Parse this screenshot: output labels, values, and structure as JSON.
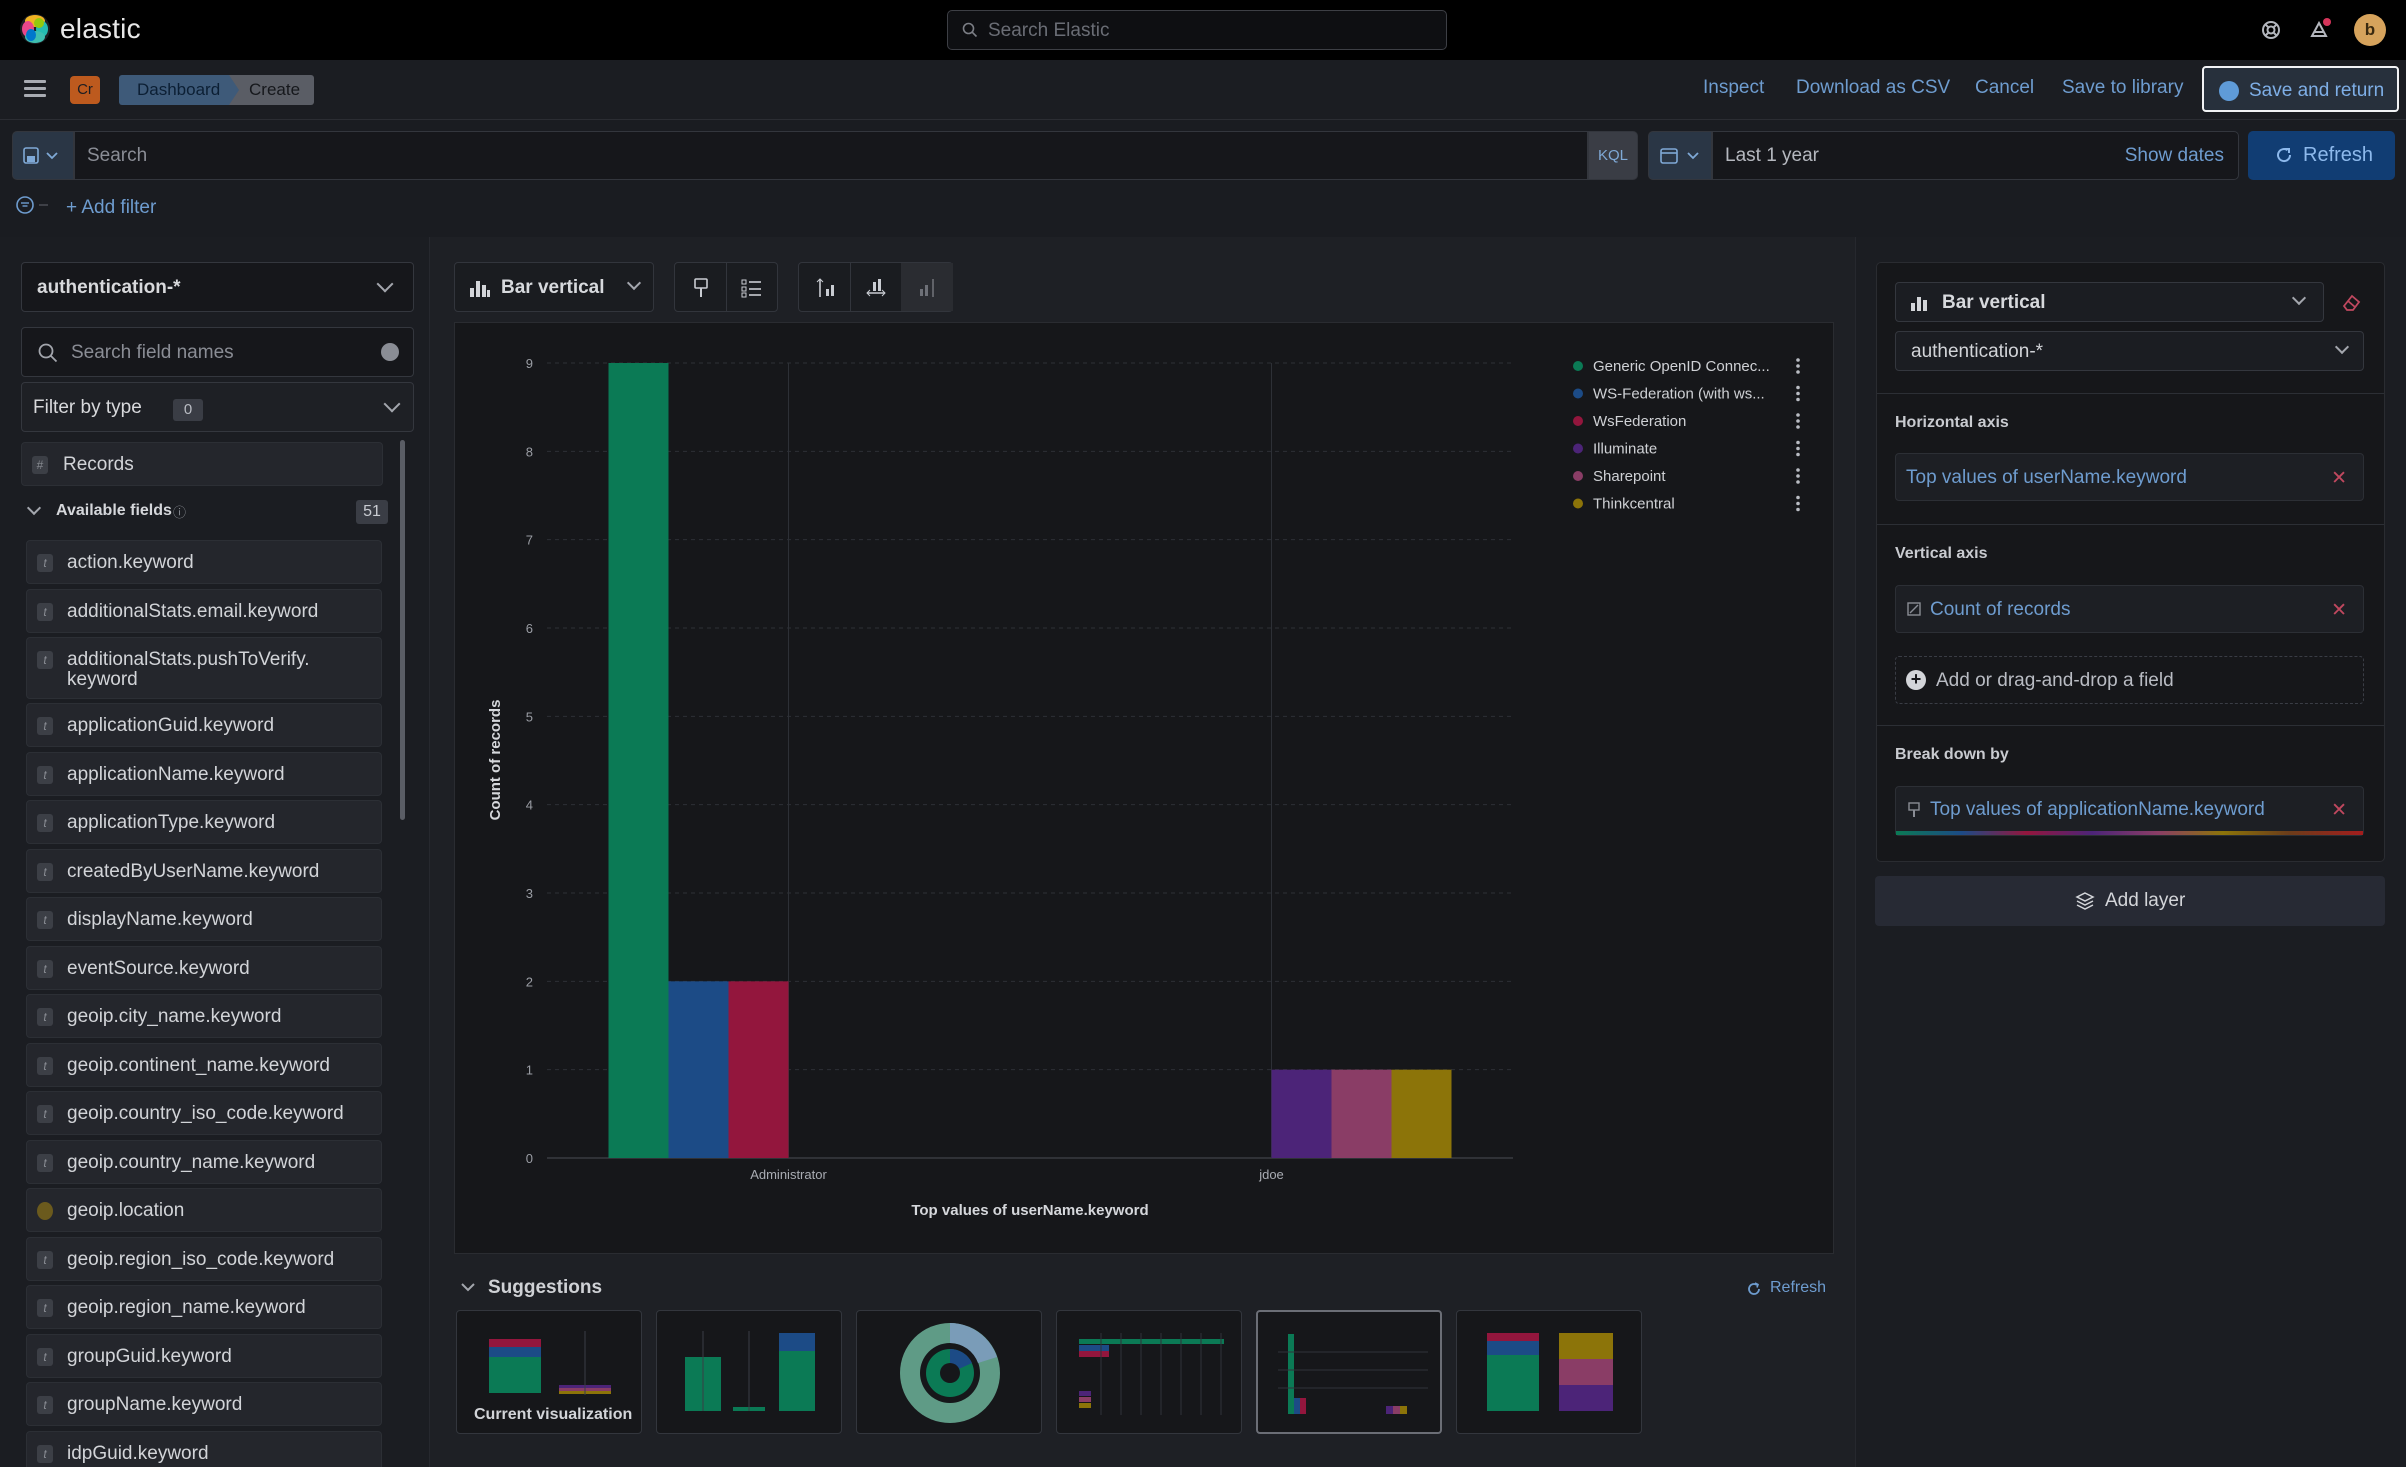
{
  "header": {
    "brand": "elastic",
    "search_placeholder": "Search Elastic",
    "avatar_initial": "b"
  },
  "appbar": {
    "space_initials": "Cr",
    "breadcrumbs": [
      "Dashboard",
      "Create"
    ],
    "actions": {
      "inspect": "Inspect",
      "download_csv": "Download as CSV",
      "cancel": "Cancel",
      "save_to_library": "Save to library",
      "save_and_return": "Save and return"
    }
  },
  "query": {
    "search_placeholder": "Search",
    "language": "KQL",
    "date_range": "Last 1 year",
    "show_dates": "Show dates",
    "refresh": "Refresh",
    "add_filter": "+ Add filter"
  },
  "left_panel": {
    "data_view": "authentication-*",
    "field_search_placeholder": "Search field names",
    "filter_by_type": "Filter by type",
    "filter_count": "0",
    "records_label": "Records",
    "available_fields_label": "Available fields",
    "available_fields_count": "51",
    "fields": [
      {
        "name": "action.keyword",
        "type": "t"
      },
      {
        "name": "additionalStats.email.keyword",
        "type": "t"
      },
      {
        "name": "additionalStats.pushToVerify.",
        "name2": "keyword",
        "type": "t"
      },
      {
        "name": "applicationGuid.keyword",
        "type": "t"
      },
      {
        "name": "applicationName.keyword",
        "type": "t"
      },
      {
        "name": "applicationType.keyword",
        "type": "t"
      },
      {
        "name": "createdByUserName.keyword",
        "type": "t"
      },
      {
        "name": "displayName.keyword",
        "type": "t"
      },
      {
        "name": "eventSource.keyword",
        "type": "t"
      },
      {
        "name": "geoip.city_name.keyword",
        "type": "t"
      },
      {
        "name": "geoip.continent_name.keyword",
        "type": "t"
      },
      {
        "name": "geoip.country_iso_code.keyword",
        "type": "t"
      },
      {
        "name": "geoip.country_name.keyword",
        "type": "t"
      },
      {
        "name": "geoip.location",
        "type": "geo"
      },
      {
        "name": "geoip.region_iso_code.keyword",
        "type": "t"
      },
      {
        "name": "geoip.region_name.keyword",
        "type": "t"
      },
      {
        "name": "groupGuid.keyword",
        "type": "t"
      },
      {
        "name": "groupName.keyword",
        "type": "t"
      },
      {
        "name": "idpGuid.keyword",
        "type": "t"
      }
    ]
  },
  "workspace": {
    "chart_type_label": "Bar vertical",
    "suggestions_title": "Suggestions",
    "suggestions_refresh": "Refresh",
    "current_visualization_label": "Current visualization"
  },
  "chart_data": {
    "type": "bar",
    "title": "",
    "xlabel": "Top values of userName.keyword",
    "ylabel": "Count of records",
    "ylim": [
      0,
      9
    ],
    "yticks": [
      0,
      1,
      2,
      3,
      4,
      5,
      6,
      7,
      8,
      9
    ],
    "categories": [
      "Administrator",
      "jdoe"
    ],
    "series": [
      {
        "name": "Generic OpenID Connec...",
        "color": "#0b7a55",
        "values": [
          9,
          0
        ]
      },
      {
        "name": "WS-Federation (with ws...",
        "color": "#1c4b86",
        "values": [
          2,
          0
        ]
      },
      {
        "name": "WsFederation",
        "color": "#93163d",
        "values": [
          2,
          0
        ]
      },
      {
        "name": "Illuminate",
        "color": "#4c2478",
        "values": [
          0,
          1
        ]
      },
      {
        "name": "Sharepoint",
        "color": "#8a3d66",
        "values": [
          0,
          1
        ]
      },
      {
        "name": "Thinkcentral",
        "color": "#8c7409",
        "values": [
          0,
          1
        ]
      }
    ],
    "legend_position": "top-right",
    "grid": true
  },
  "right_panel": {
    "chart_type": "Bar vertical",
    "data_view": "authentication-*",
    "horizontal_axis_title": "Horizontal axis",
    "horizontal_axis_value": "Top values of userName.keyword",
    "vertical_axis_title": "Vertical axis",
    "vertical_axis_value": "Count of records",
    "add_field": "Add or drag-and-drop a field",
    "breakdown_title": "Break down by",
    "breakdown_value": "Top values of applicationName.keyword",
    "add_layer": "Add layer"
  }
}
